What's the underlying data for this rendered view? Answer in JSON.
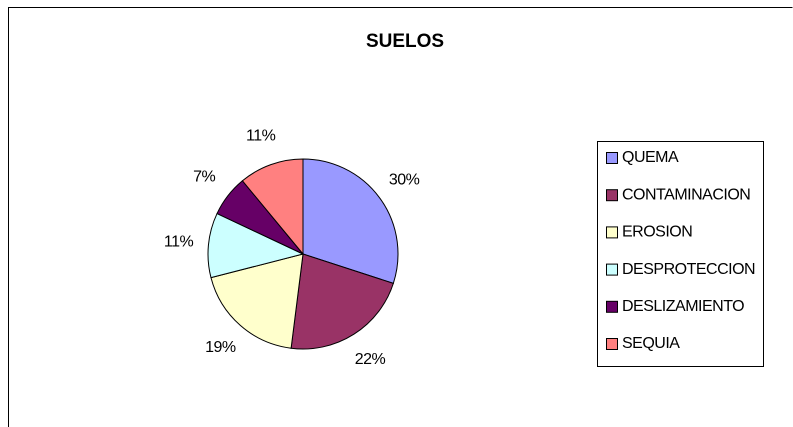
{
  "chart_data": {
    "type": "pie",
    "title": "SUELOS",
    "categories": [
      "QUEMA",
      "CONTAMINACION",
      "EROSION",
      "DESPROTECCION",
      "DESLIZAMIENTO",
      "SEQUIA"
    ],
    "values": [
      30,
      22,
      19,
      11,
      7,
      11
    ],
    "value_labels": [
      "30%",
      "22%",
      "19%",
      "11%",
      "7%",
      "11%"
    ],
    "colors": [
      "#9999ff",
      "#993366",
      "#ffffcc",
      "#ccffff",
      "#660066",
      "#ff8080"
    ],
    "legend": "right"
  }
}
